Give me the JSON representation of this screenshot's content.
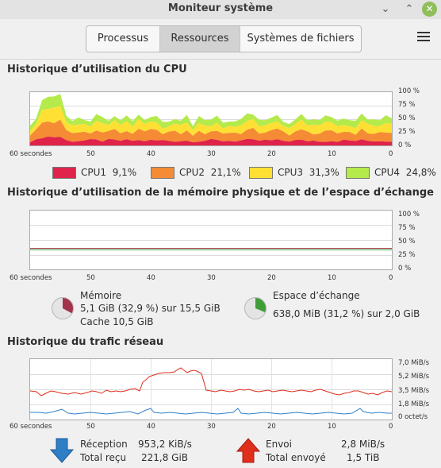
{
  "window": {
    "title": "Moniteur système",
    "minimize": "⌄",
    "maximize": "⌃",
    "close": "✕"
  },
  "tabs": [
    {
      "label": "Processus"
    },
    {
      "label": "Ressources",
      "active": true
    },
    {
      "label": "Systèmes de fichiers"
    }
  ],
  "cpu": {
    "title": "Historique d’utilisation du CPU",
    "y_ticks": [
      "100 %",
      "75 %",
      "50 %",
      "25 %",
      "0 %"
    ],
    "x_ticks": [
      "60 secondes",
      "50",
      "40",
      "30",
      "20",
      "10",
      "0"
    ],
    "legend": [
      {
        "name": "CPU1",
        "value": "9,1%",
        "color": "#e0234a"
      },
      {
        "name": "CPU2",
        "value": "21,1%",
        "color": "#f58b34"
      },
      {
        "name": "CPU3",
        "value": "31,3%",
        "color": "#fee034"
      },
      {
        "name": "CPU4",
        "value": "24,8%",
        "color": "#b4ea4b"
      }
    ]
  },
  "memory": {
    "title": "Historique d’utilisation de la mémoire physique et de l’espace d’échange",
    "y_ticks": [
      "100 %",
      "75 %",
      "50 %",
      "25 %",
      "0 %"
    ],
    "x_ticks": [
      "60 secondes",
      "50",
      "40",
      "30",
      "20",
      "10",
      "0"
    ],
    "mem_label": "Mémoire",
    "mem_value": "5,1 GiB (32,9 %) sur 15,5 GiB",
    "mem_cache": "Cache 10,5 GiB",
    "mem_fraction": 0.329,
    "mem_color": "#a3334c",
    "swap_label": "Espace d’échange",
    "swap_value": "638,0 MiB (31,2 %) sur 2,0 GiB",
    "swap_fraction": 0.312,
    "swap_color": "#3f9d3a"
  },
  "network": {
    "title": "Historique du trafic réseau",
    "y_ticks": [
      "7,0 MiB/s",
      "5,2 MiB/s",
      "3,5 MiB/s",
      "1,8 MiB/s",
      "0 octet/s"
    ],
    "x_ticks": [
      "60 secondes",
      "50",
      "40",
      "30",
      "20",
      "10",
      "0"
    ],
    "rx_label": "Réception",
    "rx_value": "953,2 KiB/s",
    "rx_total_label": "Total reçu",
    "rx_total": "221,8 GiB",
    "rx_color": "#2f80c7",
    "tx_label": "Envoi",
    "tx_value": "2,8 MiB/s",
    "tx_total_label": "Total envoyé",
    "tx_total": "1,5 TiB",
    "tx_color": "#e02e1c"
  }
}
